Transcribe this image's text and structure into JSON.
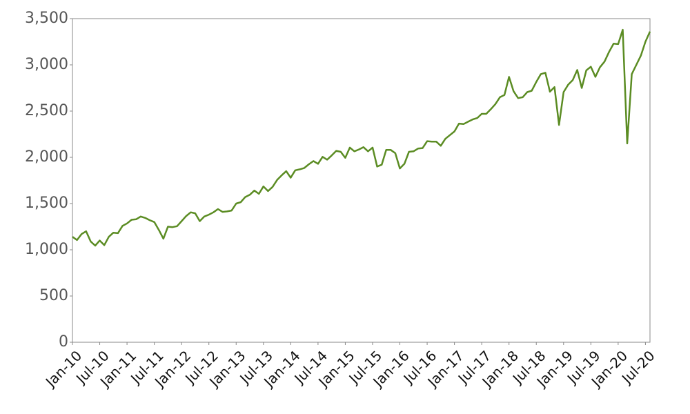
{
  "chart_data": {
    "type": "line",
    "categories": [
      "Jan-10",
      null,
      null,
      null,
      null,
      null,
      "Jul-10",
      null,
      null,
      null,
      null,
      null,
      "Jan-11",
      null,
      null,
      null,
      null,
      null,
      "Jul-11",
      null,
      null,
      null,
      null,
      null,
      "Jan-12",
      null,
      null,
      null,
      null,
      null,
      "Jul-12",
      null,
      null,
      null,
      null,
      null,
      "Jan-13",
      null,
      null,
      null,
      null,
      null,
      "Jul-13",
      null,
      null,
      null,
      null,
      null,
      "Jan-14",
      null,
      null,
      null,
      null,
      null,
      "Jul-14",
      null,
      null,
      null,
      null,
      null,
      "Jan-15",
      null,
      null,
      null,
      null,
      null,
      "Jul-15",
      null,
      null,
      null,
      null,
      null,
      "Jan-16",
      null,
      null,
      null,
      null,
      null,
      "Jul-16",
      null,
      null,
      null,
      null,
      null,
      "Jan-17",
      null,
      null,
      null,
      null,
      null,
      "Jul-17",
      null,
      null,
      null,
      null,
      null,
      "Jan-18",
      null,
      null,
      null,
      null,
      null,
      "Jul-18",
      null,
      null,
      null,
      null,
      null,
      "Jan-19",
      null,
      null,
      null,
      null,
      null,
      "Jul-19",
      null,
      null,
      null,
      null,
      null,
      "Jan-20",
      null,
      null,
      null,
      null,
      null,
      "Jul-20",
      null
    ],
    "values": [
      1140,
      1105,
      1170,
      1200,
      1090,
      1045,
      1100,
      1050,
      1140,
      1185,
      1180,
      1258,
      1285,
      1325,
      1330,
      1360,
      1345,
      1320,
      1300,
      1215,
      1120,
      1250,
      1245,
      1255,
      1310,
      1365,
      1405,
      1395,
      1310,
      1360,
      1380,
      1405,
      1440,
      1410,
      1415,
      1425,
      1500,
      1515,
      1570,
      1595,
      1640,
      1605,
      1685,
      1635,
      1680,
      1755,
      1805,
      1850,
      1780,
      1860,
      1870,
      1885,
      1925,
      1960,
      1930,
      2005,
      1975,
      2020,
      2070,
      2060,
      1995,
      2105,
      2065,
      2085,
      2110,
      2065,
      2105,
      1900,
      1920,
      2080,
      2080,
      2045,
      1880,
      1930,
      2060,
      2065,
      2095,
      2100,
      2175,
      2170,
      2170,
      2125,
      2200,
      2240,
      2280,
      2365,
      2360,
      2385,
      2410,
      2425,
      2470,
      2470,
      2520,
      2575,
      2650,
      2675,
      2870,
      2715,
      2640,
      2650,
      2705,
      2720,
      2815,
      2900,
      2915,
      2710,
      2760,
      2350,
      2705,
      2785,
      2835,
      2945,
      2750,
      2940,
      2980,
      2870,
      2975,
      3035,
      3140,
      3230,
      3225,
      3380,
      2150,
      2900,
      3000,
      3100,
      3250,
      3360
    ],
    "color": "#5b8c23",
    "ylim": [
      0,
      3500
    ],
    "yticks": [
      0,
      500,
      {
        "value": 1000,
        "label": "1,000"
      },
      {
        "value": 1500,
        "label": "1,500"
      },
      {
        "value": 2000,
        "label": "2,000"
      },
      {
        "value": 2500,
        "label": "2,500"
      },
      {
        "value": 3000,
        "label": "3,000"
      },
      {
        "value": 3500,
        "label": "3,500"
      }
    ]
  }
}
